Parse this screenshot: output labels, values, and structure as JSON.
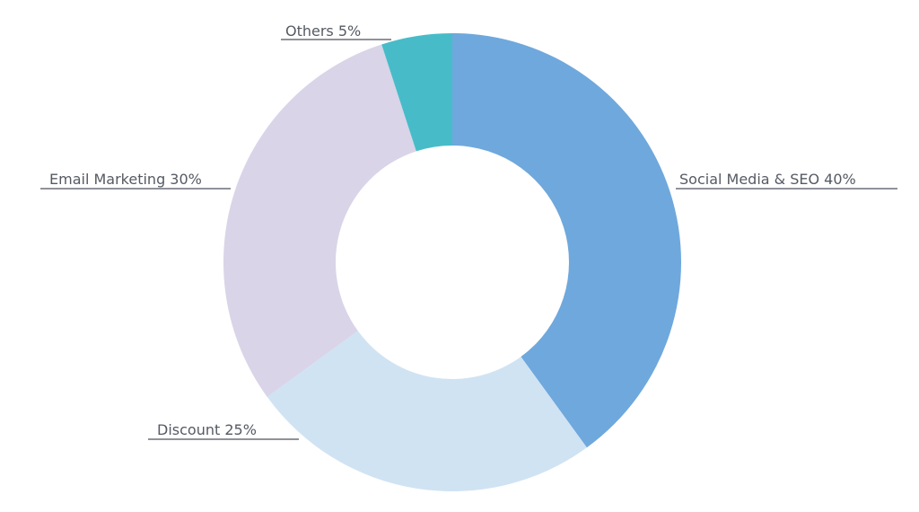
{
  "chart_data": {
    "type": "pie",
    "variant": "donut",
    "title": "",
    "categories": [
      "Social Media & SEO",
      "Discount",
      "Email Marketing",
      "Others"
    ],
    "values": [
      40,
      25,
      30,
      5
    ],
    "labels": [
      "Social Media & SEO 40%",
      "Discount 25%",
      "Email Marketing 30%",
      "Others 5%"
    ],
    "colors": [
      "#6fa8dc",
      "#d0e3f3",
      "#d9d4e8",
      "#47bcc8"
    ],
    "label_color": "#555a63",
    "leader_color": "#6b6f78",
    "start": "top, clockwise",
    "legend": "none"
  }
}
